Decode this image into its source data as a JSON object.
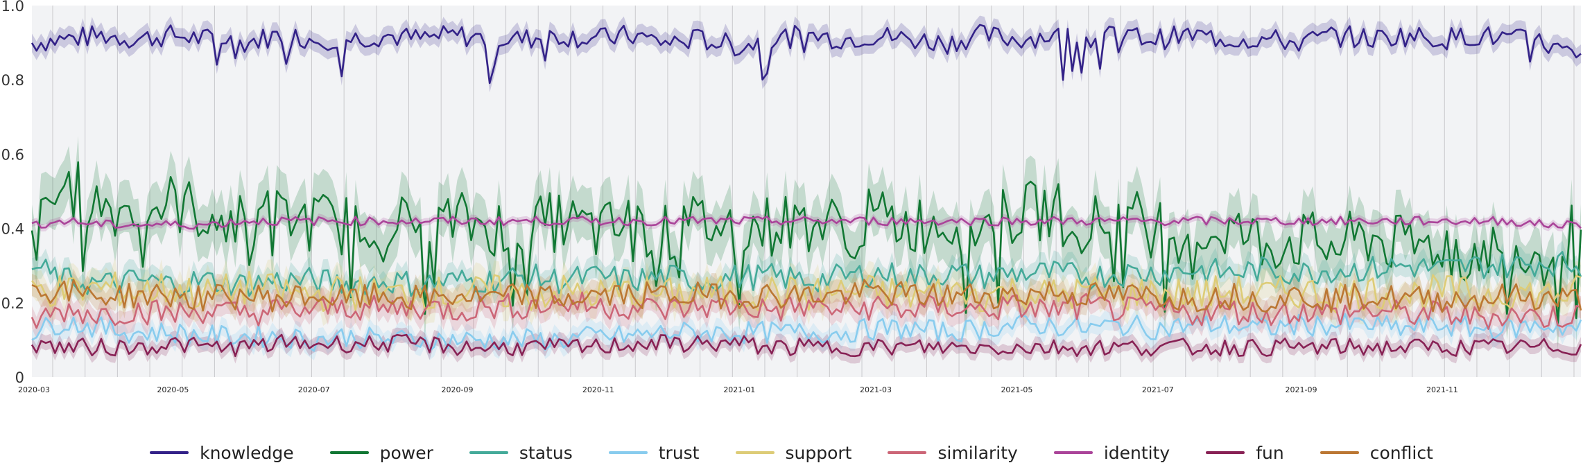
{
  "chart_data": {
    "type": "line",
    "x_start": "2020-03-01",
    "x_end": "2021-12-31",
    "xlim": [
      "2020-03-01",
      "2021-12-31"
    ],
    "ylim": [
      0,
      1.0
    ],
    "y_ticks": [
      {
        "value": 0,
        "label": "0"
      },
      {
        "value": 0.2,
        "label": "0.2"
      },
      {
        "value": 0.4,
        "label": "0.4"
      },
      {
        "value": 0.6,
        "label": "0.6"
      },
      {
        "value": 0.8,
        "label": "0.8"
      },
      {
        "value": 1.0,
        "label": "1.0"
      }
    ],
    "x_ticks": [
      {
        "date": "2020-03-01",
        "label": "2020-03"
      },
      {
        "date": "2020-05-01",
        "label": "2020-05"
      },
      {
        "date": "2020-07-01",
        "label": "2020-07"
      },
      {
        "date": "2020-09-01",
        "label": "2020-09"
      },
      {
        "date": "2020-11-01",
        "label": "2020-11"
      },
      {
        "date": "2021-01-01",
        "label": "2021-01"
      },
      {
        "date": "2021-03-01",
        "label": "2021-03"
      },
      {
        "date": "2021-05-01",
        "label": "2021-05"
      },
      {
        "date": "2021-07-01",
        "label": "2021-07"
      },
      {
        "date": "2021-09-01",
        "label": "2021-09"
      },
      {
        "date": "2021-11-01",
        "label": "2021-11"
      }
    ],
    "grid": "vertical",
    "legend_position": "bottom",
    "background": "#f2f3f5",
    "x": [
      "2020-03-01",
      "2020-03-15",
      "2020-04-01",
      "2020-04-15",
      "2020-05-01",
      "2020-05-15",
      "2020-06-01",
      "2020-06-15",
      "2020-07-01",
      "2020-07-15",
      "2020-08-01",
      "2020-08-15",
      "2020-09-01",
      "2020-09-15",
      "2020-10-01",
      "2020-10-15",
      "2020-11-01",
      "2020-11-15",
      "2020-12-01",
      "2020-12-15",
      "2021-01-01",
      "2021-01-15",
      "2021-02-01",
      "2021-02-15",
      "2021-03-01",
      "2021-03-15",
      "2021-04-01",
      "2021-04-15",
      "2021-05-01",
      "2021-05-15",
      "2021-06-01",
      "2021-06-15",
      "2021-07-01",
      "2021-07-15",
      "2021-08-01",
      "2021-08-15",
      "2021-09-01",
      "2021-09-15",
      "2021-10-01",
      "2021-10-15",
      "2021-11-01",
      "2021-11-15",
      "2021-12-01",
      "2021-12-15",
      "2021-12-31"
    ],
    "series": [
      {
        "name": "knowledge",
        "color": "#332288",
        "band": 0.025,
        "values": [
          0.9,
          0.91,
          0.92,
          0.91,
          0.92,
          0.91,
          0.9,
          0.92,
          0.91,
          0.91,
          0.92,
          0.91,
          0.92,
          0.91,
          0.91,
          0.92,
          0.91,
          0.92,
          0.9,
          0.91,
          0.89,
          0.91,
          0.92,
          0.91,
          0.92,
          0.91,
          0.9,
          0.92,
          0.91,
          0.92,
          0.91,
          0.92,
          0.91,
          0.92,
          0.91,
          0.91,
          0.9,
          0.92,
          0.91,
          0.92,
          0.91,
          0.92,
          0.91,
          0.9,
          0.85
        ]
      },
      {
        "name": "power",
        "color": "#117733",
        "band": 0.07,
        "values": [
          0.36,
          0.52,
          0.46,
          0.45,
          0.47,
          0.44,
          0.41,
          0.43,
          0.42,
          0.41,
          0.43,
          0.4,
          0.42,
          0.41,
          0.4,
          0.42,
          0.39,
          0.41,
          0.38,
          0.42,
          0.4,
          0.41,
          0.42,
          0.4,
          0.43,
          0.41,
          0.42,
          0.4,
          0.44,
          0.45,
          0.41,
          0.43,
          0.41,
          0.38,
          0.4,
          0.36,
          0.37,
          0.35,
          0.38,
          0.35,
          0.36,
          0.34,
          0.35,
          0.33,
          0.4
        ]
      },
      {
        "name": "status",
        "color": "#44AA99",
        "band": 0.03,
        "values": [
          0.3,
          0.26,
          0.25,
          0.26,
          0.25,
          0.26,
          0.25,
          0.26,
          0.26,
          0.25,
          0.26,
          0.25,
          0.26,
          0.26,
          0.27,
          0.26,
          0.27,
          0.26,
          0.27,
          0.26,
          0.27,
          0.27,
          0.26,
          0.27,
          0.28,
          0.27,
          0.28,
          0.27,
          0.28,
          0.28,
          0.27,
          0.28,
          0.28,
          0.29,
          0.28,
          0.29,
          0.28,
          0.29,
          0.29,
          0.3,
          0.29,
          0.3,
          0.3,
          0.31,
          0.3
        ]
      },
      {
        "name": "trust",
        "color": "#88CCEE",
        "band": 0.025,
        "values": [
          0.12,
          0.15,
          0.13,
          0.12,
          0.12,
          0.11,
          0.11,
          0.11,
          0.1,
          0.11,
          0.1,
          0.1,
          0.1,
          0.1,
          0.1,
          0.1,
          0.11,
          0.11,
          0.12,
          0.12,
          0.12,
          0.12,
          0.12,
          0.12,
          0.13,
          0.13,
          0.12,
          0.13,
          0.14,
          0.14,
          0.13,
          0.14,
          0.13,
          0.14,
          0.14,
          0.13,
          0.14,
          0.14,
          0.14,
          0.13,
          0.14,
          0.13,
          0.13,
          0.14,
          0.13
        ]
      },
      {
        "name": "support",
        "color": "#DDCC77",
        "band": 0.04,
        "values": [
          0.24,
          0.23,
          0.24,
          0.23,
          0.24,
          0.22,
          0.24,
          0.23,
          0.22,
          0.23,
          0.22,
          0.23,
          0.22,
          0.23,
          0.22,
          0.23,
          0.22,
          0.23,
          0.22,
          0.23,
          0.22,
          0.23,
          0.22,
          0.23,
          0.23,
          0.22,
          0.23,
          0.22,
          0.23,
          0.22,
          0.23,
          0.22,
          0.23,
          0.22,
          0.23,
          0.22,
          0.23,
          0.22,
          0.23,
          0.22,
          0.23,
          0.22,
          0.23,
          0.22,
          0.23
        ]
      },
      {
        "name": "similarity",
        "color": "#CC6677",
        "band": 0.03,
        "values": [
          0.15,
          0.18,
          0.17,
          0.18,
          0.17,
          0.18,
          0.17,
          0.18,
          0.18,
          0.19,
          0.18,
          0.19,
          0.18,
          0.19,
          0.19,
          0.2,
          0.19,
          0.19,
          0.18,
          0.19,
          0.19,
          0.18,
          0.19,
          0.18,
          0.19,
          0.18,
          0.19,
          0.18,
          0.19,
          0.18,
          0.19,
          0.18,
          0.18,
          0.17,
          0.18,
          0.17,
          0.18,
          0.17,
          0.18,
          0.17,
          0.17,
          0.16,
          0.17,
          0.16,
          0.17
        ]
      },
      {
        "name": "identity",
        "color": "#AA4499",
        "band": 0.01,
        "values": [
          0.41,
          0.42,
          0.41,
          0.41,
          0.41,
          0.41,
          0.42,
          0.42,
          0.42,
          0.42,
          0.42,
          0.42,
          0.42,
          0.42,
          0.42,
          0.42,
          0.42,
          0.42,
          0.42,
          0.42,
          0.42,
          0.42,
          0.42,
          0.42,
          0.42,
          0.42,
          0.42,
          0.42,
          0.42,
          0.42,
          0.42,
          0.42,
          0.42,
          0.42,
          0.42,
          0.42,
          0.42,
          0.42,
          0.42,
          0.42,
          0.42,
          0.42,
          0.42,
          0.41,
          0.41
        ]
      },
      {
        "name": "fun",
        "color": "#882255",
        "band": 0.02,
        "values": [
          0.09,
          0.08,
          0.08,
          0.08,
          0.09,
          0.08,
          0.08,
          0.09,
          0.09,
          0.09,
          0.09,
          0.09,
          0.08,
          0.08,
          0.08,
          0.08,
          0.08,
          0.09,
          0.09,
          0.09,
          0.09,
          0.08,
          0.08,
          0.08,
          0.08,
          0.08,
          0.08,
          0.08,
          0.08,
          0.08,
          0.08,
          0.08,
          0.08,
          0.08,
          0.08,
          0.08,
          0.08,
          0.08,
          0.08,
          0.08,
          0.08,
          0.08,
          0.08,
          0.08,
          0.08
        ]
      },
      {
        "name": "conflict",
        "color": "#BB7733",
        "band": 0.03,
        "values": [
          0.24,
          0.23,
          0.22,
          0.22,
          0.22,
          0.21,
          0.22,
          0.21,
          0.22,
          0.21,
          0.22,
          0.21,
          0.22,
          0.21,
          0.22,
          0.21,
          0.22,
          0.22,
          0.22,
          0.22,
          0.22,
          0.22,
          0.22,
          0.22,
          0.23,
          0.22,
          0.22,
          0.22,
          0.22,
          0.23,
          0.22,
          0.22,
          0.22,
          0.21,
          0.22,
          0.21,
          0.22,
          0.21,
          0.22,
          0.21,
          0.21,
          0.21,
          0.22,
          0.21,
          0.21
        ]
      }
    ]
  }
}
